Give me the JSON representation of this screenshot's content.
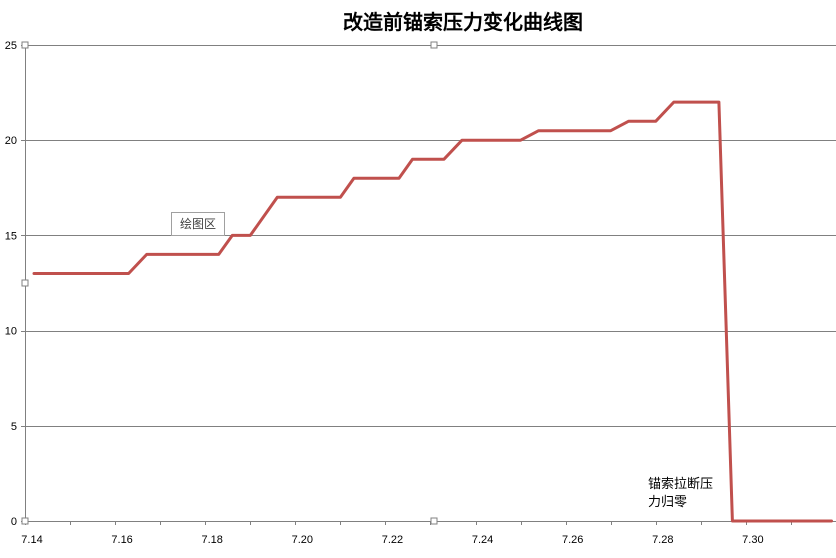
{
  "chart_data": {
    "type": "line",
    "title": "改造前锚索压力变化曲线图",
    "xlabel": "",
    "ylabel": "",
    "xlim": [
      7.14,
      7.32
    ],
    "ylim": [
      0,
      25
    ],
    "x_ticks": [
      "7.14",
      "7.16",
      "7.18",
      "7.20",
      "7.22",
      "7.24",
      "7.26",
      "7.28",
      "7.30"
    ],
    "y_ticks": [
      0,
      5,
      10,
      15,
      20,
      25
    ],
    "grid": true,
    "series": [
      {
        "color": "#c0504d",
        "points": [
          [
            7.142,
            13
          ],
          [
            7.163,
            13
          ],
          [
            7.167,
            14
          ],
          [
            7.183,
            14
          ],
          [
            7.186,
            15
          ],
          [
            7.19,
            15
          ],
          [
            7.196,
            17
          ],
          [
            7.21,
            17
          ],
          [
            7.213,
            18
          ],
          [
            7.223,
            18
          ],
          [
            7.226,
            19
          ],
          [
            7.233,
            19
          ],
          [
            7.237,
            20
          ],
          [
            7.25,
            20
          ],
          [
            7.254,
            20.5
          ],
          [
            7.27,
            20.5
          ],
          [
            7.274,
            21
          ],
          [
            7.28,
            21
          ],
          [
            7.284,
            22
          ],
          [
            7.294,
            22
          ],
          [
            7.297,
            0
          ],
          [
            7.319,
            0
          ]
        ]
      }
    ],
    "annotations": [
      {
        "text": "锚索拉断压\n力归零",
        "lines": [
          "锚索拉断压",
          "力归零"
        ],
        "at": [
          7.297,
          0
        ]
      }
    ]
  },
  "overlay": {
    "tooltip": "绘图区"
  }
}
